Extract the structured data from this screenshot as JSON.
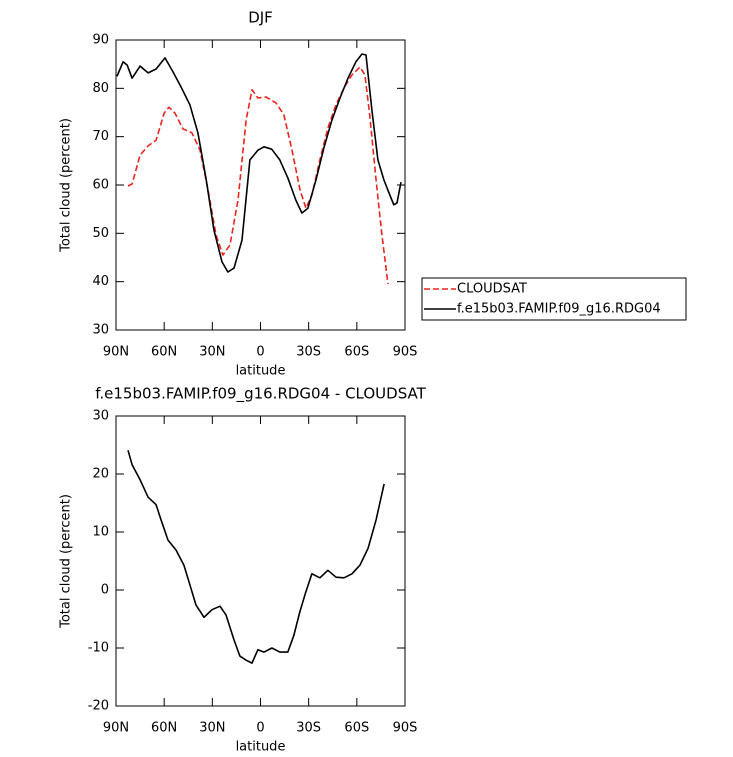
{
  "chart_data": [
    {
      "type": "line",
      "title": "DJF",
      "xlabel": "latitude",
      "ylabel": "Total cloud (percent)",
      "xlim": [
        90,
        -90
      ],
      "ylim": [
        30,
        90
      ],
      "xticks": [
        {
          "value": 90,
          "label": "90N"
        },
        {
          "value": 60,
          "label": "60N"
        },
        {
          "value": 30,
          "label": "30N"
        },
        0,
        {
          "value": -30,
          "label": "30S"
        },
        {
          "value": -60,
          "label": "60S"
        },
        {
          "value": -90,
          "label": "90S"
        }
      ],
      "yticks": [
        30,
        40,
        50,
        60,
        70,
        80,
        90
      ],
      "legend": "right",
      "series": [
        {
          "name": "CLOUDSAT",
          "color": "#e8251f",
          "dash": true,
          "x": [
            82.5,
            80,
            75,
            70,
            65,
            60,
            57,
            53.3,
            48.3,
            42.7,
            37.7,
            32.7,
            27.7,
            23.4,
            19,
            14,
            9,
            5.3,
            1.6,
            -3.4,
            -9.6,
            -14.6,
            -19.6,
            -24.6,
            -28.3,
            -32,
            -37,
            -42,
            -47,
            -52,
            -57,
            -62,
            -65,
            -68,
            -72,
            -75.6,
            -79.4
          ],
          "values": [
            59.8,
            60.2,
            66.2,
            68.1,
            69.3,
            74.9,
            76.1,
            74.9,
            71.6,
            70.8,
            67.2,
            59,
            49.7,
            45.5,
            47.6,
            56.9,
            73.4,
            79.7,
            78,
            78.2,
            77,
            74.5,
            67.2,
            59,
            55.2,
            57.9,
            65.2,
            71.8,
            76.6,
            80.1,
            82.8,
            84.4,
            82.8,
            74.5,
            61,
            49.7,
            39.5
          ]
        },
        {
          "name": "f.e15b03.FAMIP.f09_g16.RDG04",
          "color": "#000000",
          "dash": false,
          "x": [
            89.4,
            85.6,
            83,
            80,
            75,
            70,
            65,
            59.5,
            54.5,
            49.5,
            44,
            39,
            34,
            29,
            24,
            20.3,
            16.5,
            11.5,
            6.6,
            1.6,
            -2.2,
            -7,
            -12,
            -17,
            -22,
            -25.8,
            -29.5,
            -34.5,
            -39.5,
            -44.5,
            -49.5,
            -54.5,
            -59.4,
            -63.2,
            -65.7,
            -69.4,
            -73.1,
            -76.9,
            -80.6,
            -83,
            -85,
            -87.5
          ],
          "values": [
            82.5,
            85.5,
            84.8,
            82.1,
            84.6,
            83.2,
            84,
            86.3,
            83.4,
            80.3,
            76.6,
            70.8,
            61.5,
            50.7,
            44.1,
            42,
            42.8,
            48.6,
            65.2,
            67.2,
            67.9,
            67.4,
            65.2,
            61.5,
            56.9,
            54.2,
            55.2,
            61,
            67.7,
            73.4,
            78,
            82.1,
            85.5,
            87.1,
            86.9,
            75.5,
            65.2,
            61,
            57.9,
            55.9,
            56.3,
            60.6
          ]
        }
      ]
    },
    {
      "type": "line",
      "title": "f.e15b03.FAMIP.f09_g16.RDG04 - CLOUDSAT",
      "xlabel": "latitude",
      "ylabel": "Total cloud (percent)",
      "xlim": [
        90,
        -90
      ],
      "ylim": [
        -20,
        30
      ],
      "xticks": [
        {
          "value": 90,
          "label": "90N"
        },
        {
          "value": 60,
          "label": "60N"
        },
        {
          "value": 30,
          "label": "30N"
        },
        0,
        {
          "value": -30,
          "label": "30S"
        },
        {
          "value": -60,
          "label": "60S"
        },
        {
          "value": -90,
          "label": "90S"
        }
      ],
      "yticks": [
        -20,
        -10,
        0,
        10,
        20,
        30
      ],
      "series": [
        {
          "color": "#000000",
          "dash": false,
          "x": [
            82.5,
            80,
            75,
            70,
            65,
            62,
            57.6,
            52.6,
            47.7,
            44,
            40.2,
            35.2,
            30.2,
            25.2,
            21.5,
            16.5,
            12.8,
            9,
            5.3,
            1.6,
            -2.2,
            -7.1,
            -12.1,
            -17,
            -20.8,
            -24.5,
            -28.3,
            -32,
            -37,
            -42,
            -47,
            -52,
            -57,
            -62,
            -67,
            -72,
            -77
          ],
          "values": [
            24.1,
            21.6,
            19,
            16,
            14.7,
            12.1,
            8.6,
            6.9,
            4.3,
            0.9,
            -2.6,
            -4.7,
            -3.4,
            -2.8,
            -4.3,
            -8.6,
            -11.4,
            -12.1,
            -12.6,
            -10.3,
            -10.7,
            -10,
            -10.7,
            -10.7,
            -7.8,
            -3.8,
            -0.3,
            2.8,
            2.1,
            3.4,
            2.2,
            2.1,
            2.8,
            4.3,
            7.2,
            12.1,
            18.3
          ]
        }
      ]
    }
  ]
}
